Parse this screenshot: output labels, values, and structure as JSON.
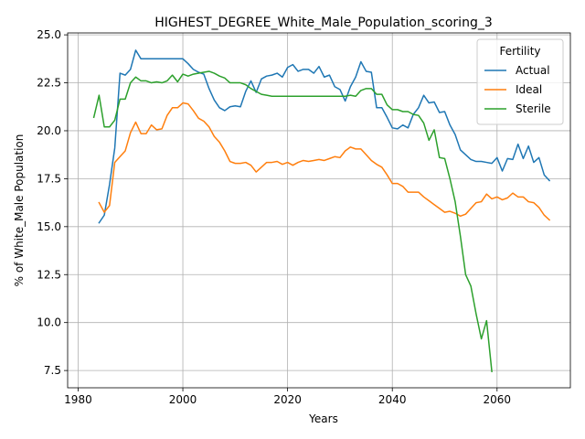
{
  "chart_data": {
    "type": "line",
    "title": "HIGHEST_DEGREE_White_Male_Population_scoring_3",
    "xlabel": "Years",
    "ylabel": "% of White_Male Population",
    "xlim": [
      1978,
      2074
    ],
    "ylim": [
      6.6,
      25.1
    ],
    "xticks": [
      1980,
      2000,
      2020,
      2040,
      2060
    ],
    "yticks": [
      7.5,
      10.0,
      12.5,
      15.0,
      17.5,
      20.0,
      22.5,
      25.0
    ],
    "xtick_labels": [
      "1980",
      "2000",
      "2020",
      "2040",
      "2060"
    ],
    "ytick_labels": [
      "7.5",
      "10.0",
      "12.5",
      "15.0",
      "17.5",
      "20.0",
      "22.5",
      "25.0"
    ],
    "grid": true,
    "legend": {
      "title": "Fertility",
      "placement": "top-right"
    },
    "series": [
      {
        "name": "Actual",
        "color": "#1f77b4",
        "x": [
          1984,
          1985,
          1986,
          1987,
          1988,
          1989,
          1990,
          1991,
          1992,
          1993,
          1994,
          1995,
          1996,
          1997,
          1998,
          1999,
          2000,
          2001,
          2002,
          2003,
          2004,
          2005,
          2006,
          2007,
          2008,
          2009,
          2010,
          2011,
          2012,
          2013,
          2014,
          2015,
          2016,
          2017,
          2018,
          2019,
          2020,
          2021,
          2022,
          2023,
          2024,
          2025,
          2026,
          2027,
          2028,
          2029,
          2030,
          2031,
          2032,
          2033,
          2034,
          2035,
          2036,
          2037,
          2038,
          2039,
          2040,
          2041,
          2042,
          2043,
          2044,
          2045,
          2046,
          2047,
          2048,
          2049,
          2050,
          2051,
          2052,
          2053,
          2054,
          2055,
          2056,
          2057,
          2058,
          2059,
          2060,
          2061,
          2062,
          2063,
          2064,
          2065,
          2066,
          2067,
          2068,
          2069,
          2070
        ],
        "values": [
          15.2,
          15.6,
          17.2,
          19.1,
          23.0,
          22.9,
          23.2,
          24.2,
          23.75,
          23.75,
          23.75,
          23.75,
          23.75,
          23.75,
          23.75,
          23.75,
          23.75,
          23.5,
          23.2,
          23.05,
          22.95,
          22.2,
          21.6,
          21.2,
          21.05,
          21.25,
          21.3,
          21.25,
          22.05,
          22.6,
          22.0,
          22.7,
          22.85,
          22.9,
          23.0,
          22.8,
          23.3,
          23.45,
          23.1,
          23.2,
          23.2,
          23.0,
          23.35,
          22.8,
          22.9,
          22.3,
          22.15,
          21.55,
          22.3,
          22.8,
          23.6,
          23.1,
          23.05,
          21.2,
          21.2,
          20.7,
          20.15,
          20.1,
          20.3,
          20.15,
          20.85,
          21.2,
          21.85,
          21.45,
          21.5,
          20.95,
          21.0,
          20.3,
          19.8,
          19.0,
          18.75,
          18.5,
          18.4,
          18.4,
          18.35,
          18.3,
          18.6,
          17.9,
          18.55,
          18.5,
          19.3,
          18.55,
          19.2,
          18.35,
          18.6,
          17.7,
          17.4
        ]
      },
      {
        "name": "Ideal",
        "color": "#ff7f0e",
        "x": [
          1984,
          1985,
          1986,
          1987,
          1988,
          1989,
          1990,
          1991,
          1992,
          1993,
          1994,
          1995,
          1996,
          1997,
          1998,
          1999,
          2000,
          2001,
          2002,
          2003,
          2004,
          2005,
          2006,
          2007,
          2008,
          2009,
          2010,
          2011,
          2012,
          2013,
          2014,
          2015,
          2016,
          2017,
          2018,
          2019,
          2020,
          2021,
          2022,
          2023,
          2024,
          2025,
          2026,
          2027,
          2028,
          2029,
          2030,
          2031,
          2032,
          2033,
          2034,
          2035,
          2036,
          2037,
          2038,
          2039,
          2040,
          2041,
          2042,
          2043,
          2044,
          2045,
          2046,
          2047,
          2048,
          2049,
          2050,
          2051,
          2052,
          2053,
          2054,
          2055,
          2056,
          2057,
          2058,
          2059,
          2060,
          2061,
          2062,
          2063,
          2064,
          2065,
          2066,
          2067,
          2068,
          2069,
          2070
        ],
        "values": [
          16.25,
          15.75,
          16.1,
          18.35,
          18.65,
          18.95,
          19.9,
          20.45,
          19.85,
          19.85,
          20.3,
          20.05,
          20.1,
          20.8,
          21.2,
          21.2,
          21.45,
          21.4,
          21.05,
          20.65,
          20.5,
          20.2,
          19.7,
          19.4,
          18.95,
          18.4,
          18.3,
          18.3,
          18.35,
          18.2,
          17.85,
          18.1,
          18.35,
          18.35,
          18.4,
          18.25,
          18.35,
          18.2,
          18.35,
          18.45,
          18.4,
          18.45,
          18.5,
          18.45,
          18.55,
          18.65,
          18.6,
          18.95,
          19.15,
          19.05,
          19.05,
          18.75,
          18.45,
          18.25,
          18.1,
          17.7,
          17.25,
          17.25,
          17.1,
          16.8,
          16.8,
          16.8,
          16.55,
          16.35,
          16.15,
          15.95,
          15.75,
          15.8,
          15.7,
          15.55,
          15.65,
          15.95,
          16.25,
          16.3,
          16.7,
          16.45,
          16.55,
          16.4,
          16.5,
          16.75,
          16.55,
          16.55,
          16.3,
          16.25,
          16.0,
          15.6,
          15.35
        ]
      },
      {
        "name": "Sterile",
        "color": "#2ca02c",
        "x": [
          1983,
          1984,
          1985,
          1986,
          1987,
          1988,
          1989,
          1990,
          1991,
          1992,
          1993,
          1994,
          1995,
          1996,
          1997,
          1998,
          1999,
          2000,
          2001,
          2002,
          2003,
          2004,
          2005,
          2006,
          2007,
          2008,
          2009,
          2010,
          2011,
          2012,
          2013,
          2014,
          2015,
          2016,
          2017,
          2018,
          2019,
          2020,
          2021,
          2022,
          2023,
          2024,
          2025,
          2026,
          2027,
          2028,
          2029,
          2030,
          2031,
          2032,
          2033,
          2034,
          2035,
          2036,
          2037,
          2038,
          2039,
          2040,
          2041,
          2042,
          2043,
          2044,
          2045,
          2046,
          2047,
          2048,
          2049,
          2050,
          2051,
          2052,
          2053,
          2054,
          2055,
          2056,
          2057,
          2058,
          2059
        ],
        "values": [
          20.7,
          21.85,
          20.2,
          20.2,
          20.55,
          21.65,
          21.65,
          22.5,
          22.8,
          22.6,
          22.6,
          22.5,
          22.55,
          22.5,
          22.6,
          22.9,
          22.55,
          22.95,
          22.85,
          22.95,
          23.0,
          23.05,
          23.1,
          23.0,
          22.85,
          22.75,
          22.5,
          22.5,
          22.5,
          22.4,
          22.2,
          22.05,
          21.9,
          21.85,
          21.8,
          21.8,
          21.8,
          21.8,
          21.8,
          21.8,
          21.8,
          21.8,
          21.8,
          21.8,
          21.8,
          21.8,
          21.8,
          21.8,
          21.8,
          21.85,
          21.8,
          22.1,
          22.2,
          22.2,
          21.9,
          21.9,
          21.35,
          21.1,
          21.1,
          21.0,
          21.0,
          20.85,
          20.8,
          20.4,
          19.5,
          20.05,
          18.6,
          18.55,
          17.5,
          16.3,
          14.5,
          12.5,
          11.9,
          10.45,
          9.15,
          10.1,
          7.45
        ]
      }
    ]
  }
}
